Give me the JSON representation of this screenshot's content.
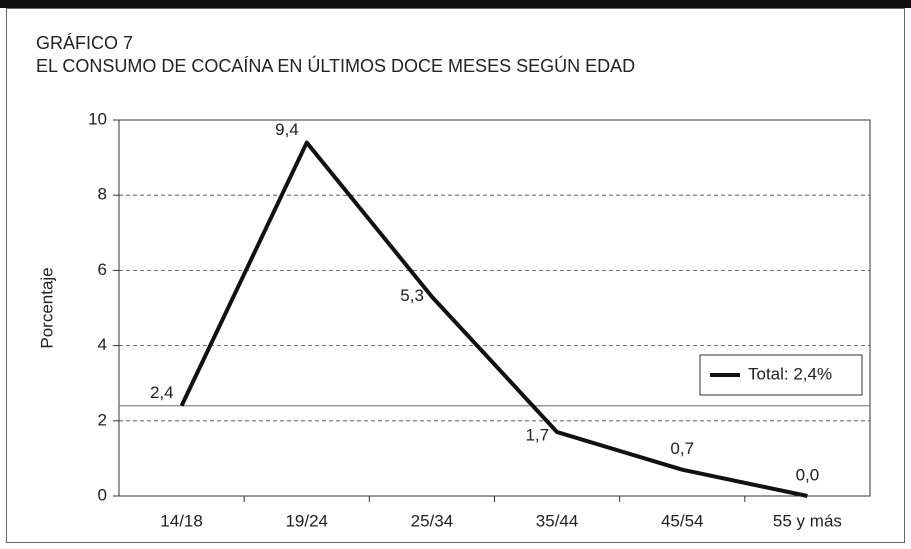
{
  "chart_data": {
    "type": "line",
    "title": "GRÁFICO 7",
    "subtitle": "EL CONSUMO DE COCAÍNA EN ÚLTIMOS DOCE MESES SEGÚN EDAD",
    "y_label": "Porcentaje",
    "categories": [
      "14/18",
      "19/24",
      "25/34",
      "35/44",
      "45/54",
      "55 y más"
    ],
    "series": [
      {
        "name": "Total: 2,4%",
        "color": "#111111",
        "values": [
          2.4,
          9.4,
          5.3,
          1.7,
          0.7,
          0.0
        ],
        "value_labels": [
          "2,4",
          "9,4",
          "5,3",
          "1,7",
          "0,7",
          "0,0"
        ]
      }
    ],
    "reference_line": 2.4,
    "ylim": [
      0,
      10
    ],
    "yticks": [
      0,
      2,
      4,
      6,
      8,
      10
    ],
    "grid": true,
    "legend": "right"
  }
}
